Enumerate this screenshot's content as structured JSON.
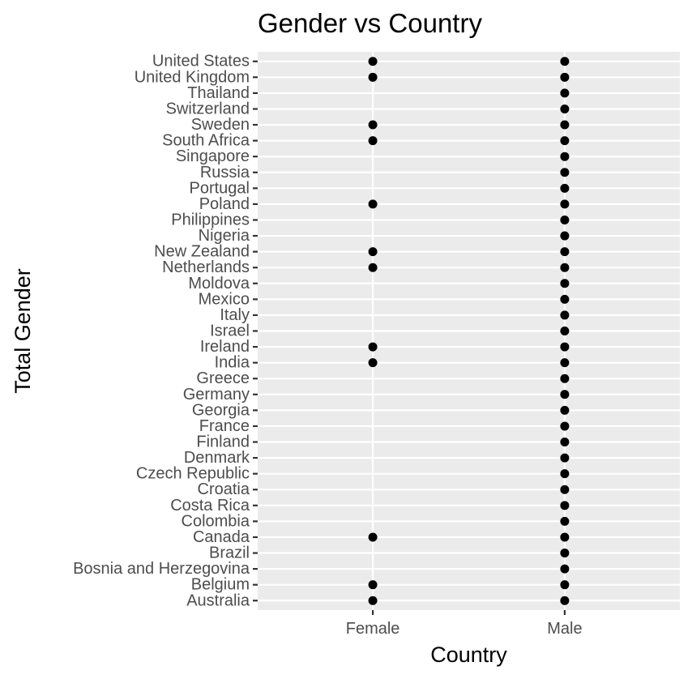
{
  "chart_data": {
    "type": "scatter",
    "title": "Gender vs Country",
    "xlabel": "Country",
    "ylabel": "Total Gender",
    "x_categories": [
      "Female",
      "Male"
    ],
    "y_categories": [
      "Australia",
      "Belgium",
      "Bosnia and Herzegovina",
      "Brazil",
      "Canada",
      "Colombia",
      "Costa Rica",
      "Croatia",
      "Czech Republic",
      "Denmark",
      "Finland",
      "France",
      "Georgia",
      "Germany",
      "Greece",
      "India",
      "Ireland",
      "Israel",
      "Italy",
      "Mexico",
      "Moldova",
      "Netherlands",
      "New Zealand",
      "Nigeria",
      "Philippines",
      "Poland",
      "Portugal",
      "Russia",
      "Singapore",
      "South Africa",
      "Sweden",
      "Switzerland",
      "Thailand",
      "United Kingdom",
      "United States"
    ],
    "points": [
      {
        "x": "Female",
        "y": "Australia"
      },
      {
        "x": "Male",
        "y": "Australia"
      },
      {
        "x": "Female",
        "y": "Belgium"
      },
      {
        "x": "Male",
        "y": "Belgium"
      },
      {
        "x": "Male",
        "y": "Bosnia and Herzegovina"
      },
      {
        "x": "Male",
        "y": "Brazil"
      },
      {
        "x": "Female",
        "y": "Canada"
      },
      {
        "x": "Male",
        "y": "Canada"
      },
      {
        "x": "Male",
        "y": "Colombia"
      },
      {
        "x": "Male",
        "y": "Costa Rica"
      },
      {
        "x": "Male",
        "y": "Croatia"
      },
      {
        "x": "Male",
        "y": "Czech Republic"
      },
      {
        "x": "Male",
        "y": "Denmark"
      },
      {
        "x": "Male",
        "y": "Finland"
      },
      {
        "x": "Male",
        "y": "France"
      },
      {
        "x": "Male",
        "y": "Georgia"
      },
      {
        "x": "Male",
        "y": "Germany"
      },
      {
        "x": "Male",
        "y": "Greece"
      },
      {
        "x": "Female",
        "y": "India"
      },
      {
        "x": "Male",
        "y": "India"
      },
      {
        "x": "Female",
        "y": "Ireland"
      },
      {
        "x": "Male",
        "y": "Ireland"
      },
      {
        "x": "Male",
        "y": "Israel"
      },
      {
        "x": "Male",
        "y": "Italy"
      },
      {
        "x": "Male",
        "y": "Mexico"
      },
      {
        "x": "Male",
        "y": "Moldova"
      },
      {
        "x": "Female",
        "y": "Netherlands"
      },
      {
        "x": "Male",
        "y": "Netherlands"
      },
      {
        "x": "Female",
        "y": "New Zealand"
      },
      {
        "x": "Male",
        "y": "New Zealand"
      },
      {
        "x": "Male",
        "y": "Nigeria"
      },
      {
        "x": "Male",
        "y": "Philippines"
      },
      {
        "x": "Female",
        "y": "Poland"
      },
      {
        "x": "Male",
        "y": "Poland"
      },
      {
        "x": "Male",
        "y": "Portugal"
      },
      {
        "x": "Male",
        "y": "Russia"
      },
      {
        "x": "Male",
        "y": "Singapore"
      },
      {
        "x": "Female",
        "y": "South Africa"
      },
      {
        "x": "Male",
        "y": "South Africa"
      },
      {
        "x": "Female",
        "y": "Sweden"
      },
      {
        "x": "Male",
        "y": "Sweden"
      },
      {
        "x": "Male",
        "y": "Switzerland"
      },
      {
        "x": "Male",
        "y": "Thailand"
      },
      {
        "x": "Female",
        "y": "United Kingdom"
      },
      {
        "x": "Male",
        "y": "United Kingdom"
      },
      {
        "x": "Female",
        "y": "United States"
      },
      {
        "x": "Male",
        "y": "United States"
      }
    ],
    "grid": true,
    "legend": "none",
    "colors": {
      "panel_background": "#ebebeb",
      "grid_line": "#ffffff",
      "point": "#000000",
      "tick_text": "#4d4d4d",
      "tick_mark": "#333333"
    }
  }
}
